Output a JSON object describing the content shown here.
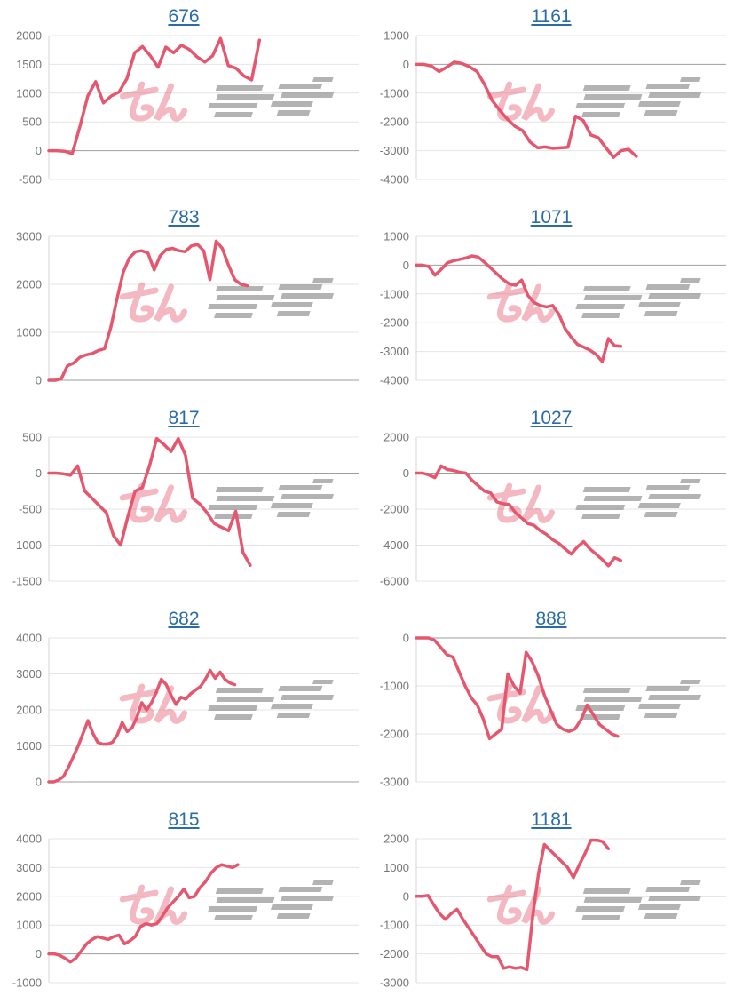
{
  "page": {
    "background": "#ffffff",
    "description": "Grid of 10 machine payout line charts, 2 columns x 5 rows, each titled with a linked machine number"
  },
  "style": {
    "line_color": "#e4576f",
    "grid_color": "#e4e4e4",
    "zero_line_color": "#9e9e9e",
    "axis_line_color": "#d6d6d6",
    "label_color": "#757575",
    "title_link_color": "#2a6ca8"
  },
  "watermark": {
    "text": "みんレポ",
    "pink_color": "#e4576f",
    "gray_color": "#969696"
  },
  "chart_data": [
    {
      "type": "line",
      "title": "676",
      "ylim": [
        -500,
        2000
      ],
      "ystep": 500,
      "yticks": [
        "2000",
        "1500",
        "1000",
        "500",
        "0",
        "-500"
      ],
      "grid": true,
      "legend": "none",
      "x_extent_fraction": 0.68,
      "values": [
        0,
        0,
        -10,
        -50,
        430,
        950,
        1200,
        830,
        950,
        1020,
        1250,
        1700,
        1810,
        1650,
        1450,
        1800,
        1700,
        1830,
        1760,
        1630,
        1540,
        1650,
        1950,
        1480,
        1430,
        1300,
        1230,
        1920
      ]
    },
    {
      "type": "line",
      "title": "1161",
      "ylim": [
        -4000,
        1000
      ],
      "ystep": 1000,
      "yticks": [
        "1000",
        "0",
        "-1000",
        "-2000",
        "-3000",
        "-4000"
      ],
      "grid": true,
      "legend": "none",
      "x_extent_fraction": 0.71,
      "values": [
        0,
        0,
        -60,
        -250,
        -100,
        80,
        30,
        -80,
        -250,
        -700,
        -1250,
        -1600,
        -1900,
        -2150,
        -2300,
        -2700,
        -2900,
        -2870,
        -2920,
        -2900,
        -2880,
        -1800,
        -1950,
        -2450,
        -2550,
        -2900,
        -3230,
        -3000,
        -2950,
        -3200
      ]
    },
    {
      "type": "line",
      "title": "783",
      "ylim": [
        0,
        3000
      ],
      "ystep": 1000,
      "yticks": [
        "3000",
        "2000",
        "1000",
        "0"
      ],
      "grid": true,
      "legend": "none",
      "x_extent_fraction": 0.64,
      "values": [
        0,
        0,
        30,
        300,
        360,
        480,
        530,
        560,
        620,
        660,
        1100,
        1700,
        2250,
        2550,
        2680,
        2700,
        2650,
        2300,
        2600,
        2730,
        2750,
        2700,
        2680,
        2800,
        2830,
        2700,
        2100,
        2900,
        2750,
        2400,
        2100,
        2000,
        1970
      ]
    },
    {
      "type": "line",
      "title": "1071",
      "ylim": [
        -4000,
        1000
      ],
      "ystep": 1000,
      "yticks": [
        "1000",
        "0",
        "-1000",
        "-2000",
        "-3000",
        "-4000"
      ],
      "grid": true,
      "legend": "none",
      "x_extent_fraction": 0.66,
      "values": [
        0,
        0,
        -50,
        -350,
        -150,
        80,
        150,
        200,
        250,
        320,
        280,
        100,
        -100,
        -300,
        -500,
        -650,
        -700,
        -520,
        -1050,
        -1300,
        -1400,
        -1450,
        -1400,
        -1700,
        -2200,
        -2500,
        -2750,
        -2850,
        -2950,
        -3100,
        -3350,
        -2550,
        -2800,
        -2820
      ]
    },
    {
      "type": "line",
      "title": "817",
      "ylim": [
        -1500,
        500
      ],
      "ystep": 500,
      "yticks": [
        "500",
        "0",
        "-500",
        "-1000",
        "-1500"
      ],
      "grid": true,
      "legend": "none",
      "x_extent_fraction": 0.65,
      "values": [
        0,
        0,
        -10,
        -30,
        100,
        -250,
        -350,
        -450,
        -550,
        -870,
        -1000,
        -600,
        -250,
        -200,
        100,
        480,
        400,
        300,
        480,
        250,
        -350,
        -430,
        -550,
        -700,
        -750,
        -800,
        -530,
        -1100,
        -1280
      ]
    },
    {
      "type": "line",
      "title": "1027",
      "ylim": [
        -6000,
        2000
      ],
      "ystep": 2000,
      "yticks": [
        "2000",
        "0",
        "-2000",
        "-4000",
        "-6000"
      ],
      "grid": true,
      "legend": "none",
      "x_extent_fraction": 0.66,
      "values": [
        0,
        0,
        -100,
        -250,
        400,
        200,
        150,
        50,
        0,
        -400,
        -700,
        -1000,
        -1100,
        -1600,
        -1700,
        -1750,
        -2200,
        -2500,
        -2800,
        -2900,
        -3200,
        -3400,
        -3700,
        -3900,
        -4200,
        -4500,
        -4100,
        -3800,
        -4200,
        -4500,
        -4800,
        -5150,
        -4700,
        -4850
      ]
    },
    {
      "type": "line",
      "title": "682",
      "ylim": [
        0,
        4000
      ],
      "ystep": 1000,
      "yticks": [
        "4000",
        "3000",
        "2000",
        "1000",
        "0"
      ],
      "grid": true,
      "legend": "none",
      "x_extent_fraction": 0.6,
      "values": [
        0,
        0,
        50,
        150,
        400,
        700,
        1000,
        1350,
        1700,
        1350,
        1100,
        1050,
        1050,
        1100,
        1300,
        1650,
        1400,
        1500,
        1800,
        2200,
        2000,
        2200,
        2500,
        2850,
        2700,
        2400,
        2150,
        2350,
        2300,
        2450,
        2550,
        2650,
        2850,
        3100,
        2880,
        3050,
        2850,
        2750,
        2700
      ]
    },
    {
      "type": "line",
      "title": "888",
      "ylim": [
        -3000,
        0
      ],
      "ystep": 1000,
      "yticks": [
        "0",
        "-1000",
        "-2000",
        "-3000"
      ],
      "grid": true,
      "legend": "none",
      "x_extent_fraction": 0.65,
      "values": [
        0,
        0,
        0,
        -50,
        -200,
        -350,
        -400,
        -700,
        -1000,
        -1250,
        -1400,
        -1700,
        -2100,
        -2000,
        -1900,
        -750,
        -1000,
        -1150,
        -300,
        -500,
        -800,
        -1200,
        -1500,
        -1800,
        -1900,
        -1950,
        -1900,
        -1700,
        -1400,
        -1600,
        -1800,
        -1900,
        -2000,
        -2050
      ]
    },
    {
      "type": "line",
      "title": "815",
      "ylim": [
        -1000,
        4000
      ],
      "ystep": 1000,
      "yticks": [
        "4000",
        "3000",
        "2000",
        "1000",
        "0",
        "-1000"
      ],
      "grid": true,
      "legend": "none",
      "x_extent_fraction": 0.61,
      "values": [
        0,
        0,
        -50,
        -150,
        -280,
        -150,
        100,
        350,
        500,
        600,
        550,
        500,
        600,
        650,
        350,
        450,
        600,
        950,
        1050,
        1000,
        1050,
        1300,
        1600,
        1800,
        2000,
        2250,
        1950,
        2000,
        2300,
        2500,
        2800,
        3000,
        3100,
        3050,
        3000,
        3100
      ]
    },
    {
      "type": "line",
      "title": "1181",
      "ylim": [
        -3000,
        2000
      ],
      "ystep": 1000,
      "yticks": [
        "2000",
        "1000",
        "0",
        "-1000",
        "-2000",
        "-3000"
      ],
      "grid": true,
      "legend": "none",
      "x_extent_fraction": 0.62,
      "values": [
        0,
        0,
        30,
        -300,
        -600,
        -800,
        -600,
        -450,
        -800,
        -1100,
        -1400,
        -1700,
        -2000,
        -2100,
        -2100,
        -2500,
        -2450,
        -2500,
        -2470,
        -2550,
        -700,
        800,
        1800,
        1600,
        1400,
        1200,
        1000,
        650,
        1100,
        1500,
        1950,
        1950,
        1900,
        1650
      ]
    }
  ]
}
